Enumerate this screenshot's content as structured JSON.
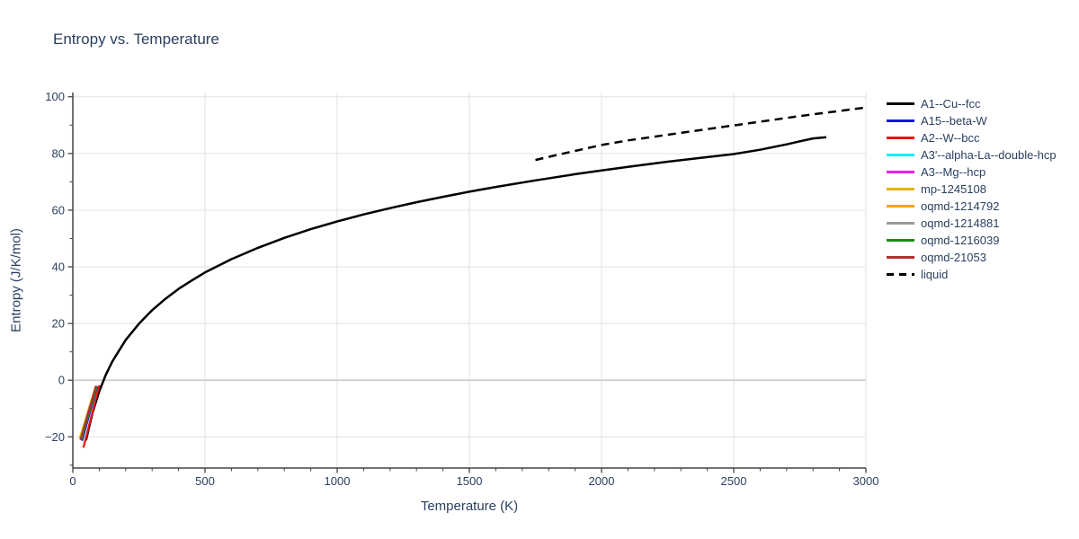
{
  "title": "Entropy vs. Temperature",
  "colors": {
    "text": "#2a3f5f",
    "axis_line": "#444444",
    "gridline": "#e6e6e6",
    "zeroline": "#d2d2d2",
    "background": "#ffffff"
  },
  "chart_data": {
    "type": "line",
    "title": "Entropy vs. Temperature",
    "xlabel": "Temperature (K)",
    "ylabel": "Entropy (J/K/mol)",
    "xlim": [
      0,
      3000
    ],
    "ylim": [
      -31,
      101.5
    ],
    "x_ticks": [
      0,
      500,
      1000,
      1500,
      2000,
      2500,
      3000
    ],
    "x_tick_labels": [
      "0",
      "500",
      "1000",
      "1500",
      "2000",
      "2500",
      "3000"
    ],
    "y_ticks": [
      -20,
      0,
      20,
      40,
      60,
      80,
      100
    ],
    "y_tick_labels": [
      "−20",
      "0",
      "20",
      "40",
      "60",
      "80",
      "100"
    ],
    "x_minor_step": 100,
    "y_minor_step": 10,
    "grid": true,
    "legend_position": "top-right",
    "series": [
      {
        "name": "A1--Cu--fcc",
        "color": "#000000",
        "dash": "solid",
        "width": 2.5,
        "points": [
          [
            50,
            -21.2
          ],
          [
            60,
            -17.2
          ],
          [
            75,
            -11.4
          ],
          [
            100,
            -3.9
          ],
          [
            125,
            2.0
          ],
          [
            150,
            6.7
          ],
          [
            200,
            14.2
          ],
          [
            250,
            19.9
          ],
          [
            300,
            24.7
          ],
          [
            350,
            28.7
          ],
          [
            400,
            32.2
          ],
          [
            450,
            35.2
          ],
          [
            500,
            38.0
          ],
          [
            600,
            42.7
          ],
          [
            700,
            46.7
          ],
          [
            800,
            50.2
          ],
          [
            900,
            53.3
          ],
          [
            1000,
            56.0
          ],
          [
            1100,
            58.5
          ],
          [
            1200,
            60.7
          ],
          [
            1300,
            62.8
          ],
          [
            1400,
            64.7
          ],
          [
            1500,
            66.5
          ],
          [
            1600,
            68.2
          ],
          [
            1750,
            70.5
          ],
          [
            1900,
            72.7
          ],
          [
            2000,
            74.0
          ],
          [
            2100,
            75.3
          ],
          [
            2250,
            77.1
          ],
          [
            2400,
            78.7
          ],
          [
            2500,
            79.8
          ],
          [
            2600,
            81.3
          ],
          [
            2700,
            83.2
          ],
          [
            2750,
            84.3
          ],
          [
            2800,
            85.3
          ],
          [
            2850,
            85.7
          ]
        ]
      },
      {
        "name": "A15--beta-W",
        "color": "#1414e6",
        "dash": "solid",
        "width": 2.2,
        "points": [
          [
            35,
            -21.4
          ],
          [
            92,
            -2.1
          ]
        ]
      },
      {
        "name": "A2--W--bcc",
        "color": "#f01010",
        "dash": "solid",
        "width": 2.2,
        "points": [
          [
            40,
            -23.8
          ],
          [
            100,
            -1.8
          ]
        ]
      },
      {
        "name": "A3'--alpha-La--double-hcp",
        "color": "#00f0ff",
        "dash": "solid",
        "width": 2.2,
        "points": [
          [
            30,
            -21.1
          ],
          [
            88,
            -2.0
          ]
        ]
      },
      {
        "name": "A3--Mg--hcp",
        "color": "#f020f0",
        "dash": "solid",
        "width": 2.2,
        "points": [
          [
            30,
            -21.1
          ],
          [
            88,
            -2.0
          ]
        ]
      },
      {
        "name": "mp-1245108",
        "color": "#e0b400",
        "dash": "solid",
        "width": 2.2,
        "points": [
          [
            26,
            -20.6
          ],
          [
            86,
            -2.2
          ]
        ]
      },
      {
        "name": "oqmd-1214792",
        "color": "#ffa010",
        "dash": "solid",
        "width": 2.2,
        "points": [
          [
            29,
            -21.0
          ],
          [
            88,
            -2.0
          ]
        ]
      },
      {
        "name": "oqmd-1214881",
        "color": "#9a9a9a",
        "dash": "solid",
        "width": 2.2,
        "points": [
          [
            29,
            -21.0
          ],
          [
            88,
            -2.0
          ]
        ]
      },
      {
        "name": "oqmd-1216039",
        "color": "#169016",
        "dash": "solid",
        "width": 2.2,
        "points": [
          [
            32,
            -21.2
          ],
          [
            90,
            -2.1
          ]
        ]
      },
      {
        "name": "oqmd-21053",
        "color": "#b03030",
        "dash": "solid",
        "width": 2.2,
        "points": [
          [
            29,
            -21.0
          ],
          [
            88,
            -2.0
          ]
        ]
      },
      {
        "name": "liquid",
        "color": "#000000",
        "dash": "dashed",
        "width": 2.5,
        "points": [
          [
            1750,
            77.7
          ],
          [
            1800,
            78.8
          ],
          [
            1900,
            80.9
          ],
          [
            2000,
            83.0
          ],
          [
            2100,
            84.6
          ],
          [
            2250,
            86.6
          ],
          [
            2400,
            88.6
          ],
          [
            2500,
            89.9
          ],
          [
            2600,
            91.2
          ],
          [
            2750,
            93.2
          ],
          [
            2850,
            94.4
          ],
          [
            3000,
            96.2
          ]
        ]
      }
    ]
  }
}
